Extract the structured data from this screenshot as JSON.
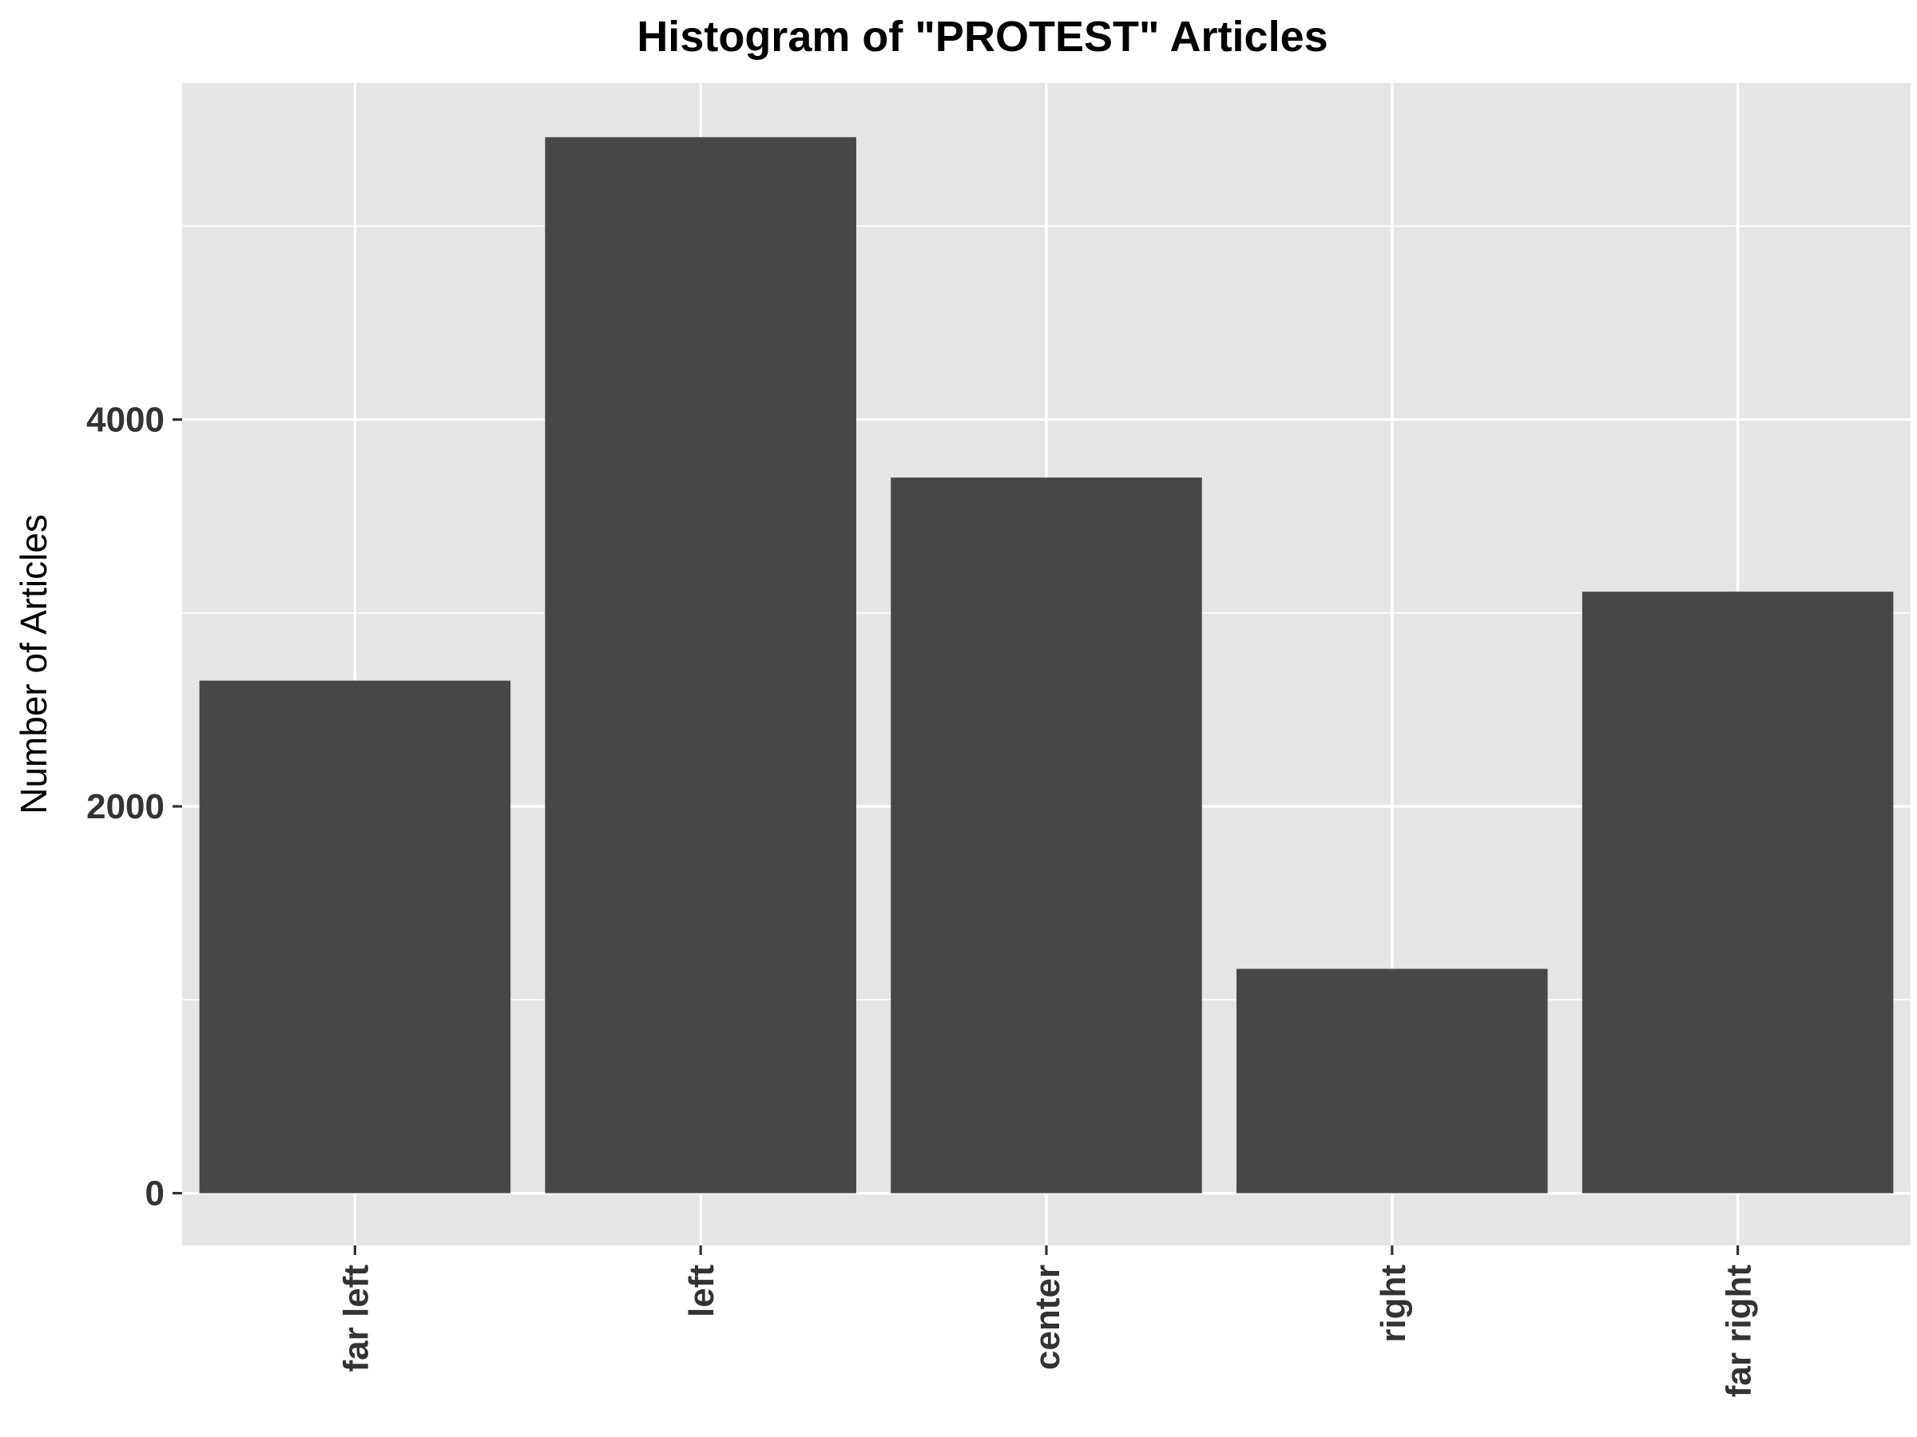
{
  "chart_data": {
    "type": "bar",
    "title": "Histogram of \"PROTEST\" Articles",
    "xlabel": "",
    "ylabel": "Number of Articles",
    "categories": [
      "far left",
      "left",
      "center",
      "right",
      "far right"
    ],
    "values": [
      2650,
      5460,
      3700,
      1160,
      3110
    ],
    "ylim": [
      -270,
      5740
    ],
    "yticks": [
      0,
      2000,
      4000
    ],
    "grid": true,
    "colors": {
      "bar": "#474747",
      "panel": "#e5e5e5",
      "grid": "#ffffff",
      "tick": "#333333"
    }
  }
}
